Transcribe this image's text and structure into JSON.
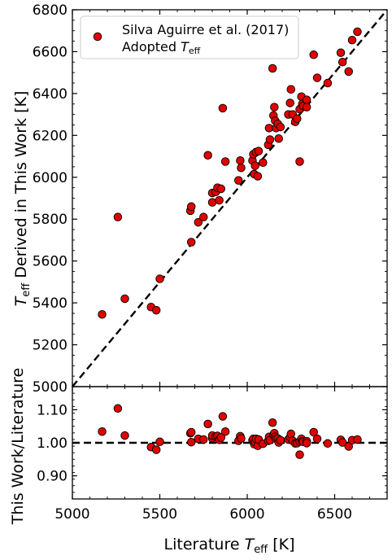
{
  "colors": {
    "marker_fill": "#e00000",
    "marker_edge": "#000000",
    "line": "#000000"
  },
  "legend": {
    "placement": "top-left",
    "line1": "Silva Aguirre et al. (2017)",
    "line2_prefix": "Adopted ",
    "line2_symbol": "T",
    "line2_sub": "eff"
  },
  "chart_data": [
    {
      "type": "scatter",
      "panel": "top",
      "x_range": [
        5000,
        6800
      ],
      "y_range": [
        5000,
        6800
      ],
      "reference_line": "one-to-one (dashed)",
      "ylabel": {
        "symbol": "T",
        "sub": "eff",
        "rest": " Derived in This Work [K]"
      },
      "y_ticks": [
        "5000",
        "5200",
        "5400",
        "5600",
        "5800",
        "6000",
        "6200",
        "6400",
        "6600",
        "6800"
      ],
      "y_tick_values": [
        5000,
        5200,
        5400,
        5600,
        5800,
        6000,
        6200,
        6400,
        6600,
        6800
      ],
      "x_tick_values": [
        5000,
        5500,
        6000,
        6500
      ],
      "legend_series": "Silva Aguirre et al. (2017) Adopted Teff",
      "points": [
        [
          5170,
          5345
        ],
        [
          5260,
          5810
        ],
        [
          5300,
          5420
        ],
        [
          5450,
          5380
        ],
        [
          5480,
          5365
        ],
        [
          5500,
          5515
        ],
        [
          5675,
          5840
        ],
        [
          5680,
          5860
        ],
        [
          5680,
          5690
        ],
        [
          5720,
          5785
        ],
        [
          5750,
          5810
        ],
        [
          5775,
          6105
        ],
        [
          5800,
          5880
        ],
        [
          5800,
          5925
        ],
        [
          5820,
          5930
        ],
        [
          5830,
          5950
        ],
        [
          5840,
          5890
        ],
        [
          5850,
          5945
        ],
        [
          5860,
          6330
        ],
        [
          5875,
          6075
        ],
        [
          5950,
          5985
        ],
        [
          5960,
          6080
        ],
        [
          5965,
          6045
        ],
        [
          6030,
          6080
        ],
        [
          6035,
          6110
        ],
        [
          6040,
          6015
        ],
        [
          6045,
          6055
        ],
        [
          6050,
          6120
        ],
        [
          6060,
          6005
        ],
        [
          6065,
          6125
        ],
        [
          6090,
          6070
        ],
        [
          6120,
          6155
        ],
        [
          6125,
          6235
        ],
        [
          6130,
          6180
        ],
        [
          6145,
          6520
        ],
        [
          6150,
          6295
        ],
        [
          6155,
          6335
        ],
        [
          6160,
          6270
        ],
        [
          6165,
          6235
        ],
        [
          6175,
          6255
        ],
        [
          6180,
          6185
        ],
        [
          6190,
          6240
        ],
        [
          6235,
          6300
        ],
        [
          6245,
          6355
        ],
        [
          6250,
          6420
        ],
        [
          6260,
          6300
        ],
        [
          6275,
          6265
        ],
        [
          6285,
          6280
        ],
        [
          6300,
          6075
        ],
        [
          6300,
          6325
        ],
        [
          6310,
          6385
        ],
        [
          6315,
          6350
        ],
        [
          6320,
          6340
        ],
        [
          6340,
          6370
        ],
        [
          6340,
          6335
        ],
        [
          6380,
          6585
        ],
        [
          6400,
          6475
        ],
        [
          6460,
          6450
        ],
        [
          6535,
          6595
        ],
        [
          6545,
          6550
        ],
        [
          6580,
          6505
        ],
        [
          6600,
          6655
        ],
        [
          6630,
          6695
        ]
      ]
    },
    {
      "type": "scatter",
      "panel": "bottom",
      "x_range": [
        5000,
        6800
      ],
      "y_range": [
        0.83,
        1.17
      ],
      "reference_line": "y = 1.00 (dashed)",
      "ylabel": "This Work/Literature",
      "xlabel": {
        "prefix": "Literature ",
        "symbol": "T",
        "sub": "eff",
        "suffix": " [K]"
      },
      "y_ticks": [
        "0.90",
        "1.00",
        "1.10"
      ],
      "y_tick_values": [
        0.9,
        1.0,
        1.1
      ],
      "x_ticks": [
        "5000",
        "5500",
        "6000",
        "6500"
      ],
      "x_tick_values": [
        5000,
        5500,
        6000,
        6500
      ],
      "points": [
        [
          5170,
          1.034
        ],
        [
          5260,
          1.104
        ],
        [
          5300,
          1.022
        ],
        [
          5450,
          0.987
        ],
        [
          5480,
          0.979
        ],
        [
          5500,
          1.003
        ],
        [
          5675,
          1.029
        ],
        [
          5680,
          1.032
        ],
        [
          5680,
          1.002
        ],
        [
          5720,
          1.012
        ],
        [
          5750,
          1.01
        ],
        [
          5775,
          1.057
        ],
        [
          5800,
          1.014
        ],
        [
          5800,
          1.022
        ],
        [
          5820,
          1.019
        ],
        [
          5830,
          1.021
        ],
        [
          5840,
          1.009
        ],
        [
          5850,
          1.016
        ],
        [
          5860,
          1.08
        ],
        [
          5875,
          1.034
        ],
        [
          5950,
          1.006
        ],
        [
          5960,
          1.02
        ],
        [
          5965,
          1.013
        ],
        [
          6030,
          1.008
        ],
        [
          6035,
          1.012
        ],
        [
          6040,
          0.996
        ],
        [
          6045,
          1.002
        ],
        [
          6050,
          1.012
        ],
        [
          6060,
          0.991
        ],
        [
          6065,
          1.01
        ],
        [
          6090,
          0.997
        ],
        [
          6120,
          1.006
        ],
        [
          6125,
          1.018
        ],
        [
          6130,
          1.008
        ],
        [
          6145,
          1.061
        ],
        [
          6150,
          1.024
        ],
        [
          6155,
          1.029
        ],
        [
          6160,
          1.018
        ],
        [
          6165,
          1.012
        ],
        [
          6175,
          1.013
        ],
        [
          6180,
          1.001
        ],
        [
          6190,
          1.008
        ],
        [
          6235,
          1.01
        ],
        [
          6245,
          1.017
        ],
        [
          6250,
          1.027
        ],
        [
          6260,
          1.006
        ],
        [
          6275,
          0.998
        ],
        [
          6285,
          0.999
        ],
        [
          6300,
          0.964
        ],
        [
          6300,
          1.004
        ],
        [
          6310,
          1.012
        ],
        [
          6315,
          1.005
        ],
        [
          6320,
          1.003
        ],
        [
          6340,
          1.005
        ],
        [
          6340,
          0.999
        ],
        [
          6380,
          1.032
        ],
        [
          6400,
          1.012
        ],
        [
          6460,
          0.998
        ],
        [
          6535,
          1.009
        ],
        [
          6545,
          1.001
        ],
        [
          6580,
          0.989
        ],
        [
          6600,
          1.008
        ],
        [
          6630,
          1.01
        ]
      ]
    }
  ]
}
